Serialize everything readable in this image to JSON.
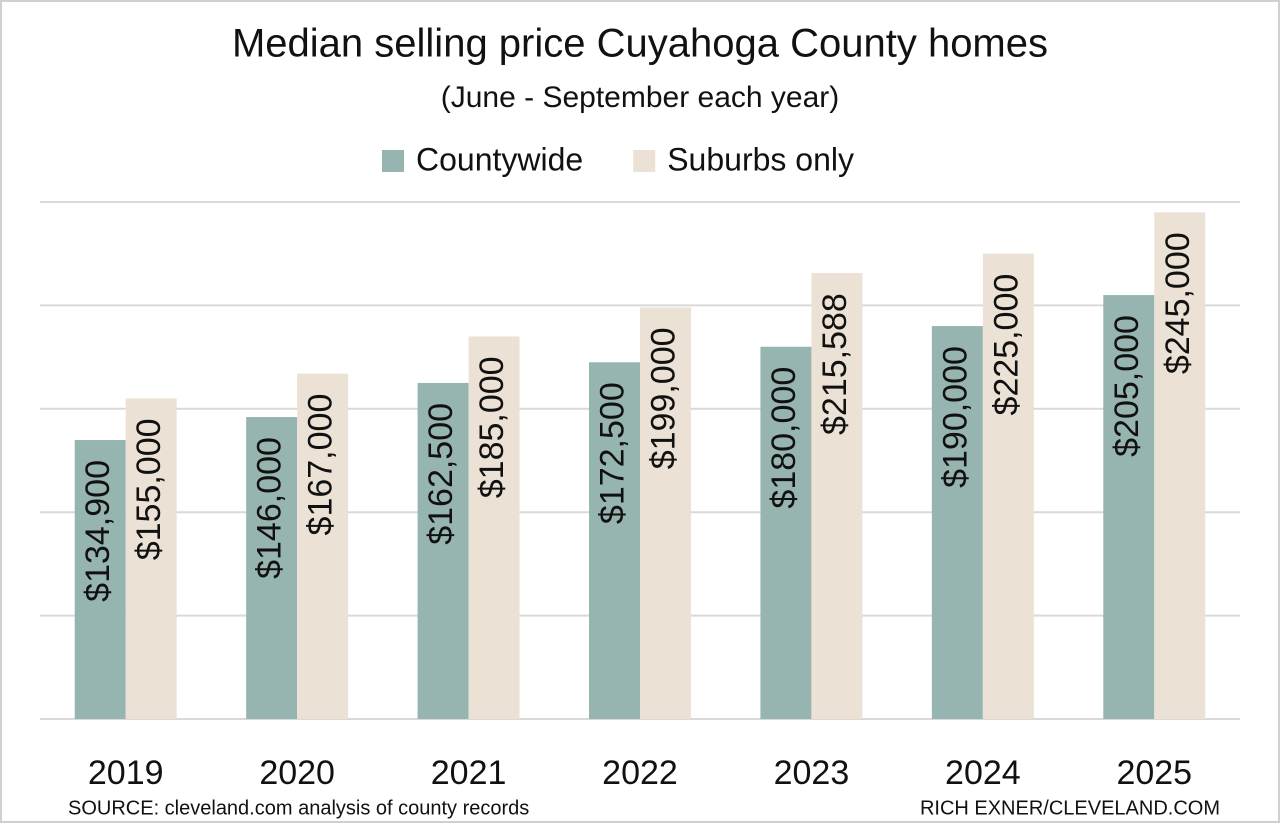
{
  "chart_data": {
    "type": "bar",
    "title": "Median selling price Cuyahoga County homes",
    "subtitle": "(June - September each year)",
    "categories": [
      "2019",
      "2020",
      "2021",
      "2022",
      "2023",
      "2024",
      "2025"
    ],
    "series": [
      {
        "name": "Countywide",
        "color": "#97b5b0",
        "values": [
          134900,
          146000,
          162500,
          172500,
          180000,
          190000,
          205000
        ],
        "value_labels": [
          "$134,900",
          "$146,000",
          "$162,500",
          "$172,500",
          "$180,000",
          "$190,000",
          "$205,000"
        ]
      },
      {
        "name": "Suburbs only",
        "color": "#ebe2d5",
        "values": [
          155000,
          167000,
          185000,
          199000,
          215588,
          225000,
          245000
        ],
        "value_labels": [
          "$155,000",
          "$167,000",
          "$185,000",
          "$199,000",
          "$215,588",
          "$225,000",
          "$245,000"
        ]
      }
    ],
    "ylim": [
      0,
      250000
    ],
    "yticks": [
      0,
      50000,
      100000,
      150000,
      200000,
      250000
    ],
    "show_ytick_labels": false,
    "grid": true,
    "legend": "top",
    "source": "SOURCE: cleveland.com analysis of county records",
    "credit": "RICH EXNER/CLEVELAND.COM"
  }
}
